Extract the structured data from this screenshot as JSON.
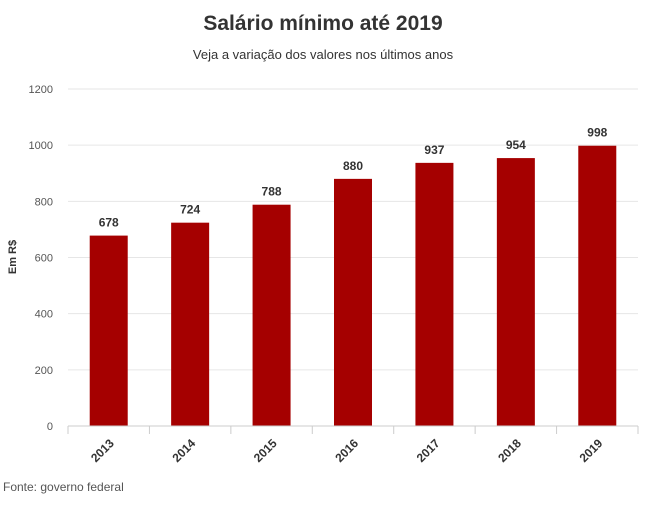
{
  "chart_data": {
    "type": "bar",
    "title": "Salário mínimo até 2019",
    "subtitle": "Veja a variação dos valores nos últimos anos",
    "categories": [
      "2013",
      "2014",
      "2015",
      "2016",
      "2017",
      "2018",
      "2019"
    ],
    "values": [
      678,
      724,
      788,
      880,
      937,
      954,
      998
    ],
    "xlabel": "",
    "ylabel": "Em R$",
    "ylim": [
      0,
      1200
    ],
    "yticks": [
      0,
      200,
      400,
      600,
      800,
      1000,
      1200
    ],
    "grid": true,
    "data_labels": true,
    "bar_color": "#a50000",
    "source": "Fonte: governo federal"
  }
}
